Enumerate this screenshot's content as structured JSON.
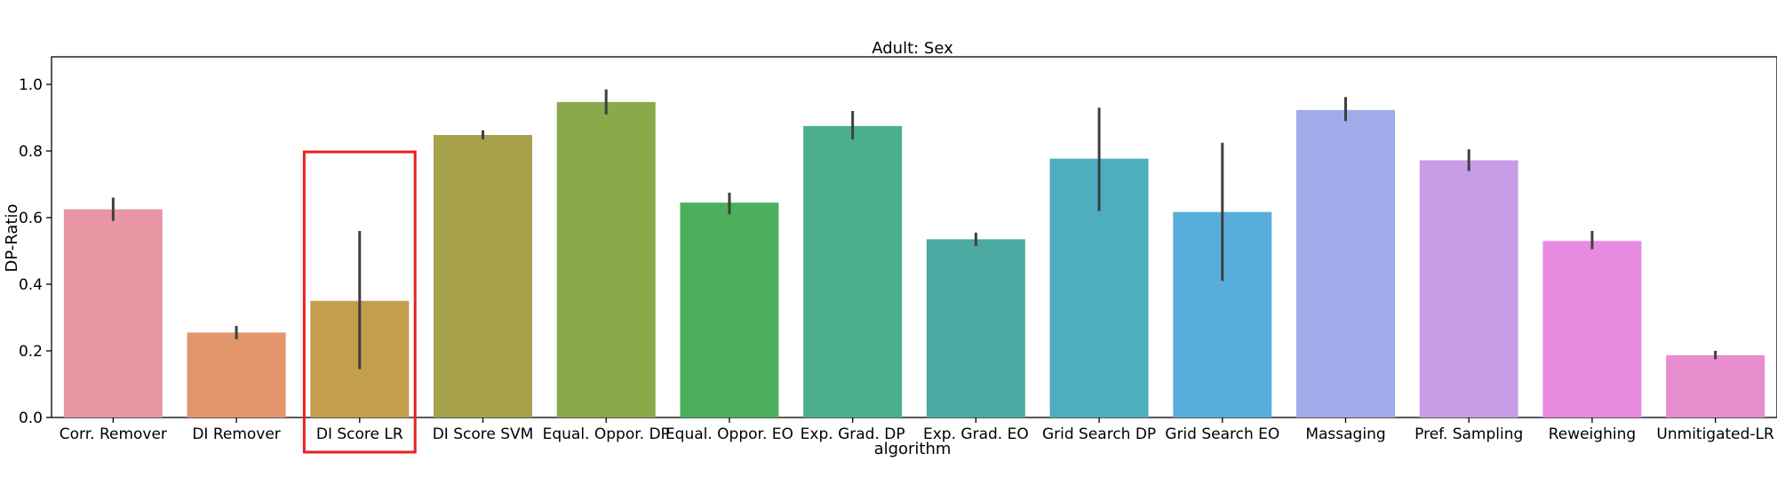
{
  "chart_data": {
    "type": "bar",
    "title": "Adult: Sex",
    "xlabel": "algorithm",
    "ylabel": "DP-Ratio",
    "ylim": [
      0,
      1.08
    ],
    "yticks": [
      "0.0",
      "0.2",
      "0.4",
      "0.6",
      "0.8",
      "1.0"
    ],
    "grid": false,
    "categories": [
      "Corr. Remover",
      "DI Remover",
      "DI Score LR",
      "DI Score SVM",
      "Equal. Oppor. DP",
      "Equal. Oppor. EO",
      "Exp. Grad. DP",
      "Exp. Grad. EO",
      "Grid Search DP",
      "Grid Search EO",
      "Massaging",
      "Pref. Sampling",
      "Reweighing",
      "Unmitigated-LR"
    ],
    "values": [
      0.625,
      0.255,
      0.35,
      0.848,
      0.947,
      0.645,
      0.875,
      0.535,
      0.777,
      0.617,
      0.923,
      0.772,
      0.53,
      0.187
    ],
    "error_low": [
      0.59,
      0.235,
      0.145,
      0.835,
      0.91,
      0.61,
      0.835,
      0.515,
      0.62,
      0.41,
      0.89,
      0.74,
      0.505,
      0.175
    ],
    "error_high": [
      0.66,
      0.275,
      0.56,
      0.862,
      0.985,
      0.675,
      0.92,
      0.555,
      0.93,
      0.825,
      0.962,
      0.805,
      0.56,
      0.2
    ],
    "colors": [
      "#e996a4",
      "#e3956c",
      "#c29e4d",
      "#a6a04b",
      "#89aa49",
      "#4caf5e",
      "#4bae8e",
      "#4ba9a2",
      "#4daebd",
      "#58aedb",
      "#a0abe9",
      "#c69de6",
      "#e88ae0",
      "#e88dce"
    ],
    "highlight": {
      "category": "DI Score LR",
      "color": "#e8201f"
    }
  }
}
